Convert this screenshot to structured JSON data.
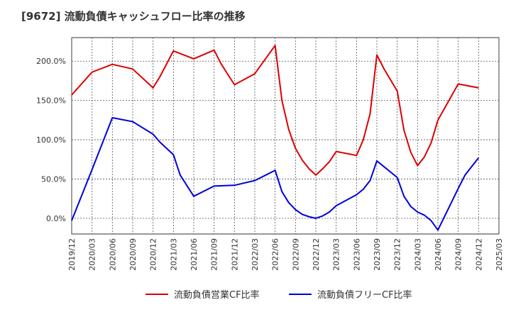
{
  "chart_data": {
    "type": "line",
    "title": "[9672]  流動負債キャッシュフロー比率の推移",
    "xlabel": "",
    "ylabel": "",
    "x_ticks": [
      "2019/12",
      "2020/03",
      "2020/06",
      "2020/09",
      "2020/12",
      "2021/03",
      "2021/06",
      "2021/09",
      "2021/12",
      "2022/03",
      "2022/06",
      "2022/09",
      "2022/12",
      "2023/03",
      "2023/06",
      "2023/09",
      "2023/12",
      "2024/03",
      "2024/06",
      "2024/09",
      "2024/12",
      "2025/03"
    ],
    "y_ticks": [
      "0.0%",
      "50.0%",
      "100.0%",
      "150.0%",
      "200.0%"
    ],
    "ylim": [
      -20,
      230
    ],
    "grid": true,
    "legend_position": "bottom",
    "x_axis_unit": "month_index_from_2019/12",
    "series": [
      {
        "name": "流動負債営業CF比率",
        "color": "#dd0000",
        "points": [
          [
            "2019/12",
            157
          ],
          [
            "2020/03",
            186
          ],
          [
            "2020/06",
            196
          ],
          [
            "2020/09",
            190
          ],
          [
            "2020/12",
            166
          ],
          [
            "2021/01",
            180
          ],
          [
            "2021/03",
            213
          ],
          [
            "2021/06",
            203
          ],
          [
            "2021/09",
            214
          ],
          [
            "2021/10",
            197
          ],
          [
            "2021/12",
            170
          ],
          [
            "2022/03",
            184
          ],
          [
            "2022/06",
            220
          ],
          [
            "2022/07",
            150
          ],
          [
            "2022/08",
            113
          ],
          [
            "2022/09",
            89
          ],
          [
            "2022/10",
            74
          ],
          [
            "2022/11",
            63
          ],
          [
            "2022/12",
            55
          ],
          [
            "2023/01",
            63
          ],
          [
            "2023/02",
            72
          ],
          [
            "2023/03",
            85
          ],
          [
            "2023/06",
            80
          ],
          [
            "2023/07",
            100
          ],
          [
            "2023/08",
            133
          ],
          [
            "2023/09",
            208
          ],
          [
            "2023/10",
            191
          ],
          [
            "2023/12",
            162
          ],
          [
            "2024/01",
            112
          ],
          [
            "2024/02",
            84
          ],
          [
            "2024/03",
            67
          ],
          [
            "2024/04",
            78
          ],
          [
            "2024/05",
            96
          ],
          [
            "2024/06",
            125
          ],
          [
            "2024/09",
            171
          ],
          [
            "2024/12",
            166
          ]
        ]
      },
      {
        "name": "流動負債フリーCF比率",
        "color": "#0000dd",
        "points": [
          [
            "2019/12",
            -3
          ],
          [
            "2020/03",
            62
          ],
          [
            "2020/06",
            128
          ],
          [
            "2020/09",
            123
          ],
          [
            "2020/12",
            107
          ],
          [
            "2021/01",
            97
          ],
          [
            "2021/03",
            81
          ],
          [
            "2021/04",
            55
          ],
          [
            "2021/06",
            28
          ],
          [
            "2021/09",
            41
          ],
          [
            "2021/12",
            42
          ],
          [
            "2022/03",
            48
          ],
          [
            "2022/06",
            61
          ],
          [
            "2022/07",
            34
          ],
          [
            "2022/08",
            20
          ],
          [
            "2022/09",
            11
          ],
          [
            "2022/10",
            5
          ],
          [
            "2022/11",
            2
          ],
          [
            "2022/12",
            0
          ],
          [
            "2023/01",
            3
          ],
          [
            "2023/02",
            8
          ],
          [
            "2023/03",
            16
          ],
          [
            "2023/06",
            30
          ],
          [
            "2023/07",
            37
          ],
          [
            "2023/08",
            48
          ],
          [
            "2023/09",
            73
          ],
          [
            "2023/10",
            66
          ],
          [
            "2023/12",
            52
          ],
          [
            "2024/01",
            28
          ],
          [
            "2024/02",
            15
          ],
          [
            "2024/03",
            8
          ],
          [
            "2024/04",
            4
          ],
          [
            "2024/05",
            -3
          ],
          [
            "2024/06",
            -15
          ],
          [
            "2024/09",
            38
          ],
          [
            "2024/10",
            55
          ],
          [
            "2024/12",
            77
          ]
        ]
      }
    ]
  }
}
